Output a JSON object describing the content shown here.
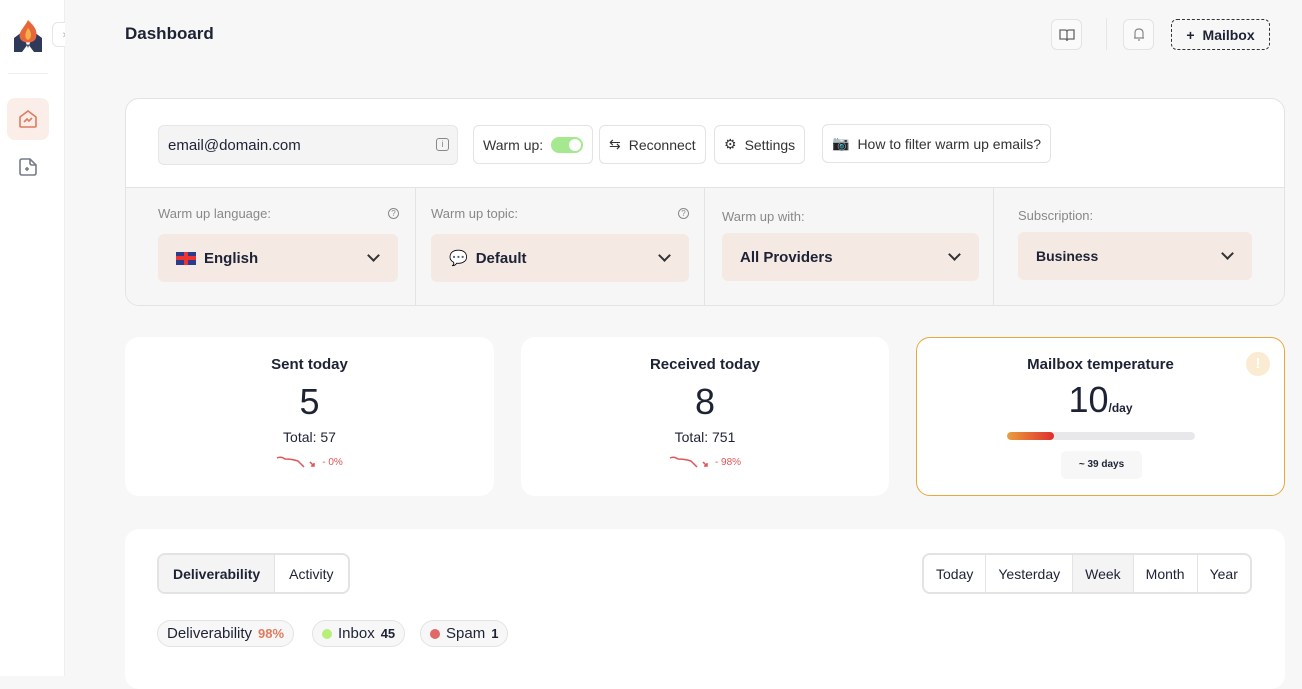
{
  "sidebar": {
    "items": [
      {
        "name": "dashboard",
        "icon": "home-chart-icon",
        "active": true
      },
      {
        "name": "add",
        "icon": "add-file-icon"
      }
    ]
  },
  "header": {
    "title": "Dashboard",
    "add_mailbox": "Mailbox",
    "icons": [
      "book-icon",
      "bell-icon"
    ]
  },
  "account": {
    "email": "email@domain.com",
    "warmup_label": "Warm up:",
    "warmup_on": true,
    "reconnect": "Reconnect",
    "settings": "Settings",
    "help": "How to filter warm up emails?"
  },
  "selectors": [
    {
      "label": "Warm up language:",
      "value": "English",
      "help": true
    },
    {
      "label": "Warm up topic:",
      "value": "Default",
      "help": true
    },
    {
      "label": "Warm up with:",
      "value": "All Providers"
    },
    {
      "label": "Subscription:",
      "value": "Business"
    }
  ],
  "stats": {
    "sent": {
      "title": "Sent today",
      "value": "5",
      "total": "Total: 57",
      "trend": "- 0%"
    },
    "received": {
      "title": "Received today",
      "value": "8",
      "total": "Total: 751",
      "trend": "- 98%"
    },
    "temperature": {
      "title": "Mailbox temperature",
      "value": "10",
      "unit": "/day",
      "progress_percent": 25,
      "days": "~ 39 days",
      "warn": "!"
    }
  },
  "tabs": [
    {
      "label": "Deliverability",
      "active": true
    },
    {
      "label": "Activity"
    }
  ],
  "ranges": [
    {
      "label": "Today"
    },
    {
      "label": "Yesterday"
    },
    {
      "label": "Week",
      "active": true
    },
    {
      "label": "Month"
    },
    {
      "label": "Year"
    }
  ],
  "chips": {
    "deliverability": {
      "label": "Deliverability",
      "value": "98%"
    },
    "inbox": {
      "label": "Inbox",
      "value": "45"
    },
    "spam": {
      "label": "Spam",
      "value": "1"
    }
  },
  "colors": {
    "accent": "#e07a5f",
    "inbox": "#b6f07a",
    "spam": "#e06868",
    "border_warn": "#e8a83a"
  }
}
